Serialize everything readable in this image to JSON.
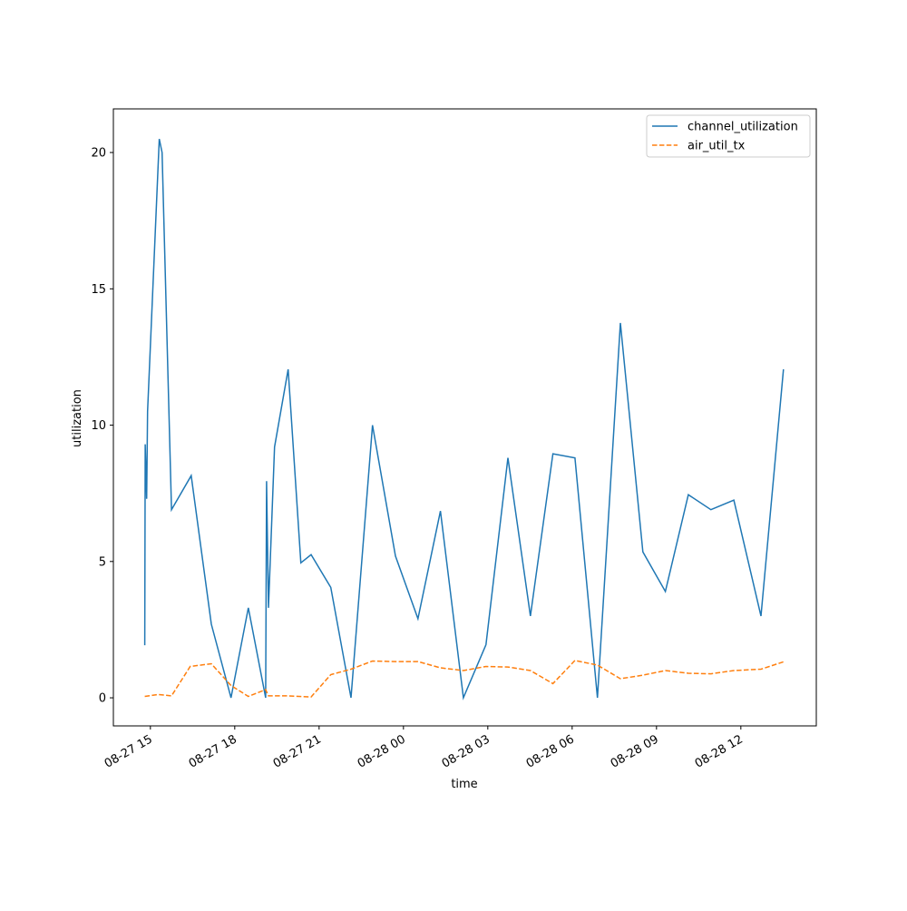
{
  "chart_data": {
    "type": "line",
    "xlabel": "time",
    "ylabel": "utilization",
    "xlim": [
      "08-27 13:41",
      "08-28 14:41"
    ],
    "ylim": [
      -1.03,
      21.6
    ],
    "grid": false,
    "legend_position": "top-right",
    "x_ticks": [
      "08-27 15",
      "08-27 18",
      "08-27 21",
      "08-28 00",
      "08-28 03",
      "08-28 06",
      "08-28 09",
      "08-28 12"
    ],
    "y_ticks": [
      "0",
      "5",
      "10",
      "15",
      "20"
    ],
    "series": [
      {
        "name": "channel_utilization",
        "color": "#1f77b4",
        "style": "solid",
        "x": [
          "08-27 14:48",
          "08-27 14:49",
          "08-27 14:52",
          "08-27 14:54",
          "08-27 15:19",
          "08-27 15:25",
          "08-27 15:45",
          "08-27 16:27",
          "08-27 17:10",
          "08-27 17:52",
          "08-27 18:29",
          "08-27 19:06",
          "08-27 19:08",
          "08-27 19:12",
          "08-27 19:25",
          "08-27 19:54",
          "08-27 20:21",
          "08-27 20:43",
          "08-27 21:25",
          "08-27 22:08",
          "08-27 22:54",
          "08-27 23:43",
          "08-28 00:31",
          "08-28 01:19",
          "08-28 02:08",
          "08-28 02:56",
          "08-28 03:43",
          "08-28 04:31",
          "08-28 05:19",
          "08-28 06:06",
          "08-28 06:54",
          "08-28 07:43",
          "08-28 08:31",
          "08-28 09:19",
          "08-28 10:08",
          "08-28 10:56",
          "08-28 11:45",
          "08-28 12:43",
          "08-28 13:31"
        ],
        "values": [
          1.93,
          9.3,
          7.3,
          10.5,
          20.5,
          20.0,
          6.9,
          8.15,
          2.7,
          0,
          3.3,
          0,
          7.95,
          3.3,
          9.2,
          12.05,
          4.95,
          5.25,
          4.05,
          0,
          10.0,
          5.2,
          2.9,
          6.85,
          0,
          1.95,
          8.8,
          3.0,
          8.95,
          8.8,
          0,
          13.75,
          5.35,
          3.9,
          7.45,
          6.9,
          7.25,
          3.0,
          12.05
        ]
      },
      {
        "name": "air_util_tx",
        "color": "#ff7f0e",
        "style": "dashed",
        "x": [
          "08-27 14:48",
          "08-27 15:17",
          "08-27 15:45",
          "08-27 16:25",
          "08-27 17:10",
          "08-27 17:52",
          "08-27 18:29",
          "08-27 19:06",
          "08-27 19:12",
          "08-27 19:54",
          "08-27 20:43",
          "08-27 21:25",
          "08-27 22:08",
          "08-27 22:54",
          "08-27 23:43",
          "08-28 00:31",
          "08-28 01:19",
          "08-28 02:08",
          "08-28 02:56",
          "08-28 03:43",
          "08-28 04:31",
          "08-28 05:19",
          "08-28 06:06",
          "08-28 06:54",
          "08-28 07:43",
          "08-28 08:31",
          "08-28 09:19",
          "08-28 10:08",
          "08-28 10:56",
          "08-28 11:45",
          "08-28 12:43",
          "08-28 13:31"
        ],
        "values": [
          0.05,
          0.12,
          0.07,
          1.15,
          1.25,
          0.45,
          0.05,
          0.3,
          0.07,
          0.07,
          0.03,
          0.85,
          1.05,
          1.35,
          1.33,
          1.33,
          1.1,
          1.0,
          1.15,
          1.13,
          1.0,
          0.52,
          1.37,
          1.2,
          0.7,
          0.83,
          1.0,
          0.9,
          0.88,
          1.0,
          1.05,
          1.32
        ]
      }
    ]
  }
}
